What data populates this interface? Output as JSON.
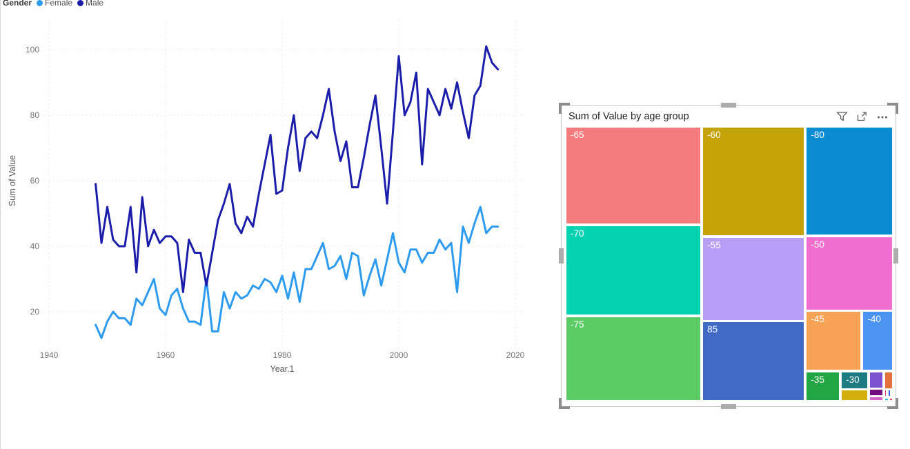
{
  "canvas": {
    "background": "#FFFFFF"
  },
  "treemap_header_icons": [
    "filter-icon",
    "focus-mode-icon",
    "more-options-icon"
  ],
  "chart_data": [
    {
      "type": "line",
      "title": "",
      "legend_title": "Gender",
      "legend_position": "top-left",
      "xlabel": "Year.1",
      "ylabel": "Sum of Value",
      "x_ticks": [
        1940,
        1960,
        1980,
        2000,
        2020
      ],
      "y_ticks": [
        20,
        40,
        60,
        80,
        100
      ],
      "x_start_year": 1948,
      "x_step": 1,
      "xlim": [
        1938,
        2022
      ],
      "ylim": [
        8,
        106
      ],
      "grid": true,
      "grid_color": "#E2E2E2",
      "tick_color": "#767676",
      "axis_title_color": "#555555",
      "series": [
        {
          "name": "Female",
          "color": "#2D9BF0",
          "values": [
            16,
            12,
            17,
            20,
            18,
            18,
            16,
            24,
            22,
            26,
            30,
            21,
            19,
            25,
            27,
            21,
            17,
            17,
            16,
            30,
            14,
            14,
            26,
            21,
            26,
            24,
            25,
            28,
            27,
            30,
            29,
            26,
            31,
            24,
            32,
            23,
            33,
            33,
            37,
            41,
            33,
            34,
            37,
            30,
            38,
            37,
            25,
            31,
            36,
            28,
            36,
            44,
            35,
            32,
            39,
            39,
            35,
            38,
            38,
            42,
            39,
            41,
            26,
            46,
            41,
            47,
            52,
            44,
            46,
            46
          ]
        },
        {
          "name": "Male",
          "color": "#1B1EAB",
          "values": [
            59,
            41,
            52,
            42,
            40,
            40,
            52,
            32,
            55,
            40,
            45,
            41,
            43,
            43,
            41,
            26,
            42,
            38,
            38,
            28,
            38,
            48,
            53,
            59,
            47,
            44,
            49,
            46,
            56,
            65,
            74,
            56,
            57,
            70,
            80,
            63,
            73,
            75,
            73,
            80,
            88,
            75,
            66,
            72,
            58,
            58,
            67,
            77,
            86,
            70,
            53,
            75,
            98,
            80,
            84,
            93,
            65,
            88,
            84,
            80,
            88,
            82,
            90,
            81,
            73,
            86,
            89,
            101,
            96,
            94
          ]
        }
      ]
    },
    {
      "type": "treemap",
      "title": "Sum of Value by age group",
      "label_color": "#FFFFFF",
      "tiles": [
        {
          "label": "-65",
          "color": "#F57C7C",
          "x": 0,
          "y": 0,
          "w": 41.4,
          "h": 35.6
        },
        {
          "label": "-70",
          "color": "#04D3B2",
          "x": 0,
          "y": 36.1,
          "w": 41.4,
          "h": 32.7
        },
        {
          "label": "-75",
          "color": "#5BCB63",
          "x": 0,
          "y": 69.3,
          "w": 41.4,
          "h": 30.7
        },
        {
          "label": "-60",
          "color": "#C5A206",
          "x": 41.8,
          "y": 0,
          "w": 31.3,
          "h": 39.9
        },
        {
          "label": "-55",
          "color": "#B89EF6",
          "x": 41.8,
          "y": 40.4,
          "w": 31.3,
          "h": 30.3
        },
        {
          "label": "85",
          "color": "#4169C6",
          "x": 41.8,
          "y": 71.1,
          "w": 31.3,
          "h": 28.9
        },
        {
          "label": "-80",
          "color": "#0A8CD2",
          "x": 73.5,
          "y": 0,
          "w": 26.5,
          "h": 39.6
        },
        {
          "label": "-50",
          "color": "#F06ECF",
          "x": 73.5,
          "y": 40.1,
          "w": 26.5,
          "h": 26.8
        },
        {
          "label": "-45",
          "color": "#F7A254",
          "x": 73.5,
          "y": 67.3,
          "w": 16.9,
          "h": 21.6
        },
        {
          "label": "-40",
          "color": "#4B94F2",
          "x": 90.8,
          "y": 67.3,
          "w": 9.2,
          "h": 21.6
        },
        {
          "label": "-35",
          "color": "#22A643",
          "x": 73.5,
          "y": 89.3,
          "w": 10.3,
          "h": 10.7
        },
        {
          "label": "-30",
          "color": "#1D7B82",
          "x": 84.2,
          "y": 89.3,
          "w": 8.2,
          "h": 6.3
        },
        {
          "label": "",
          "color": "#D3AF0E",
          "x": 84.2,
          "y": 96.0,
          "w": 8.2,
          "h": 4.0
        },
        {
          "label": "",
          "color": "#7C52CE",
          "x": 92.8,
          "y": 89.3,
          "w": 4.2,
          "h": 6.1
        },
        {
          "label": "",
          "color": "#E2703A",
          "x": 97.4,
          "y": 89.3,
          "w": 2.6,
          "h": 6.3
        },
        {
          "label": "",
          "color": "#740B80",
          "x": 92.8,
          "y": 95.8,
          "w": 4.2,
          "h": 2.4
        },
        {
          "label": "",
          "color": "#D160C8",
          "x": 92.8,
          "y": 98.5,
          "w": 4.2,
          "h": 1.5
        },
        {
          "label": "",
          "color": "#E8258C",
          "x": 97.4,
          "y": 96.0,
          "w": 0.8,
          "h": 2.6
        },
        {
          "label": "",
          "color": "#2F5BE8",
          "x": 98.6,
          "y": 96.0,
          "w": 0.8,
          "h": 2.6
        },
        {
          "label": "",
          "color": "#29BBEB",
          "x": 97.4,
          "y": 98.9,
          "w": 1.4,
          "h": 1.1
        },
        {
          "label": "",
          "color": "#E84A4A",
          "x": 99.0,
          "y": 98.9,
          "w": 1.0,
          "h": 1.1
        }
      ]
    }
  ]
}
